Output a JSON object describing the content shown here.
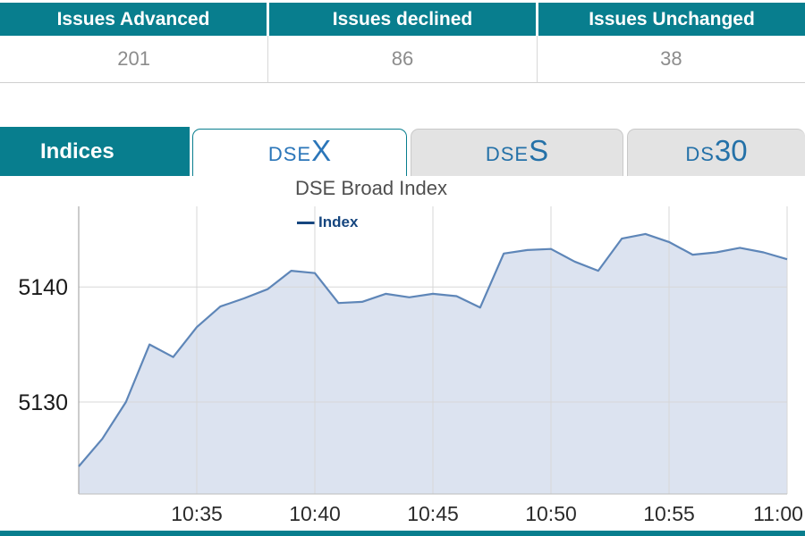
{
  "colors": {
    "accent_teal": "#087e8e",
    "tab_active_text": "#2b76b9",
    "tab_inactive_text": "#2471a8",
    "value_text": "#8c8c8c"
  },
  "table": {
    "headers": [
      "Issues Advanced",
      "Issues declined",
      "Issues Unchanged"
    ],
    "values": [
      "201",
      "86",
      "38"
    ]
  },
  "tabs": {
    "indices_label": "Indices",
    "items": [
      {
        "main": "DSE",
        "suffix": "X",
        "active": true
      },
      {
        "main": "DSE",
        "suffix": "S",
        "active": false
      },
      {
        "main": "DS",
        "suffix": "30",
        "active": false
      }
    ]
  },
  "chart_data": {
    "type": "area",
    "title": "DSE Broad Index",
    "legend": [
      "Index"
    ],
    "legend_position": "top",
    "grid": true,
    "xlabel": "",
    "ylabel": "",
    "x": [
      "10:30",
      "10:31",
      "10:32",
      "10:33",
      "10:34",
      "10:35",
      "10:36",
      "10:37",
      "10:38",
      "10:39",
      "10:40",
      "10:41",
      "10:42",
      "10:43",
      "10:44",
      "10:45",
      "10:46",
      "10:47",
      "10:48",
      "10:49",
      "10:50",
      "10:51",
      "10:52",
      "10:53",
      "10:54",
      "10:55",
      "10:56",
      "10:57",
      "10:58",
      "10:59",
      "11:00"
    ],
    "series": [
      {
        "name": "Index",
        "values": [
          5124.4,
          5126.8,
          5130.0,
          5135.0,
          5133.9,
          5136.5,
          5138.3,
          5139.0,
          5139.8,
          5141.4,
          5141.2,
          5138.6,
          5138.7,
          5139.4,
          5139.1,
          5139.4,
          5139.2,
          5138.2,
          5142.9,
          5143.2,
          5143.3,
          5142.2,
          5141.4,
          5144.2,
          5144.6,
          5143.9,
          5142.8,
          5143.0,
          5143.4,
          5143.0,
          5142.4
        ]
      }
    ],
    "x_tick_labels": [
      "10:35",
      "10:40",
      "10:45",
      "10:50",
      "10:55",
      "11:00"
    ],
    "y_ticks": [
      5130,
      5140
    ],
    "ylim": [
      5122,
      5147
    ],
    "colors": {
      "line": "#5e86b8",
      "fill": "#dce3f0",
      "legend": "#16467f"
    }
  }
}
